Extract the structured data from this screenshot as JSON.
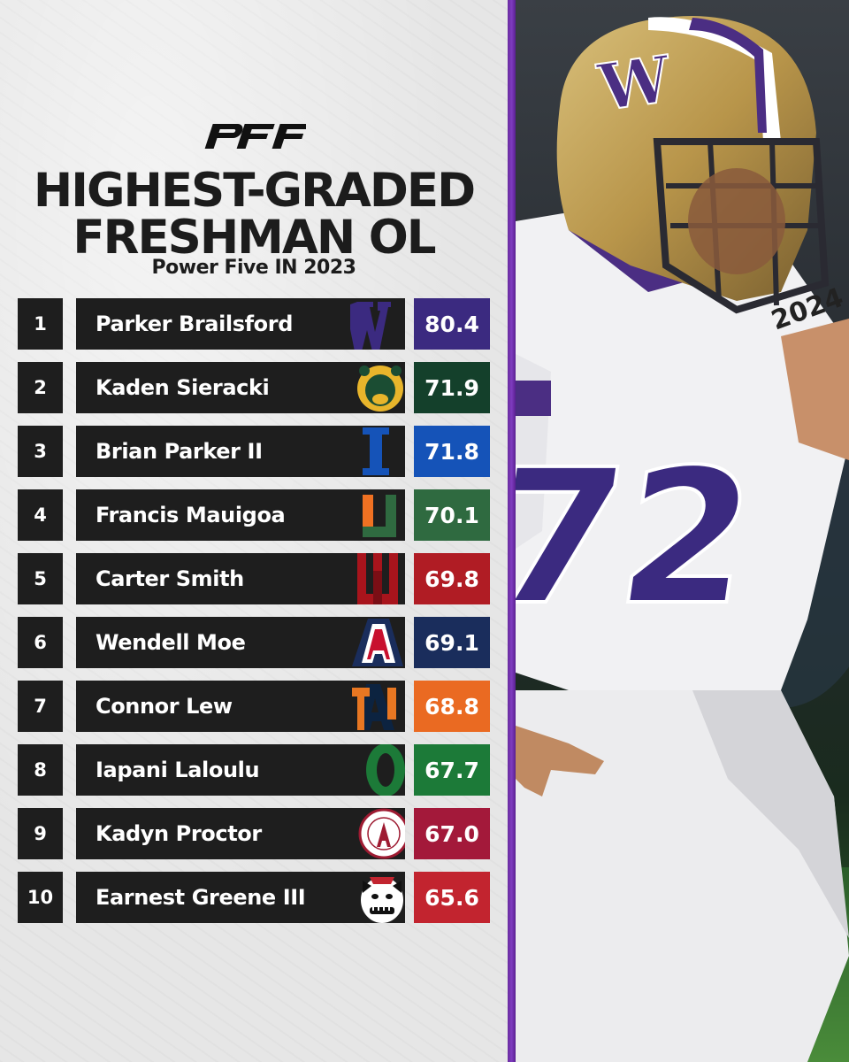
{
  "brand": "PFF",
  "title_line1": "HIGHEST-GRADED",
  "title_line2": "FRESHMAN OL",
  "subtitle": "Power Five IN 2023",
  "rows": [
    {
      "rank": "1",
      "name": "Parker Brailsford",
      "grade": "80.4",
      "color": "#3b2a80",
      "logo": "washington-w-logo"
    },
    {
      "rank": "2",
      "name": "Kaden Sieracki",
      "grade": "71.9",
      "color": "#14402b",
      "logo": "baylor-bear-logo"
    },
    {
      "rank": "3",
      "name": "Brian Parker II",
      "grade": "71.8",
      "color": "#1553b8",
      "logo": "duke-d-logo"
    },
    {
      "rank": "4",
      "name": "Francis Mauigoa",
      "grade": "70.1",
      "color": "#2f6a40",
      "logo": "miami-u-logo"
    },
    {
      "rank": "5",
      "name": "Carter Smith",
      "grade": "69.8",
      "color": "#b01c24",
      "logo": "indiana-iu-logo"
    },
    {
      "rank": "6",
      "name": "Wendell Moe",
      "grade": "69.1",
      "color": "#1a2d5c",
      "logo": "arizona-a-logo"
    },
    {
      "rank": "7",
      "name": "Connor Lew",
      "grade": "68.8",
      "color": "#ea6a22",
      "logo": "auburn-au-logo"
    },
    {
      "rank": "8",
      "name": "Iapani Laloulu",
      "grade": "67.7",
      "color": "#1c7a38",
      "logo": "oregon-o-logo"
    },
    {
      "rank": "9",
      "name": "Kadyn Proctor",
      "grade": "67.0",
      "color": "#a3193a",
      "logo": "alabama-a-logo"
    },
    {
      "rank": "10",
      "name": "Earnest Greene III",
      "grade": "65.6",
      "color": "#c2242f",
      "logo": "georgia-bulldog-logo"
    }
  ]
}
